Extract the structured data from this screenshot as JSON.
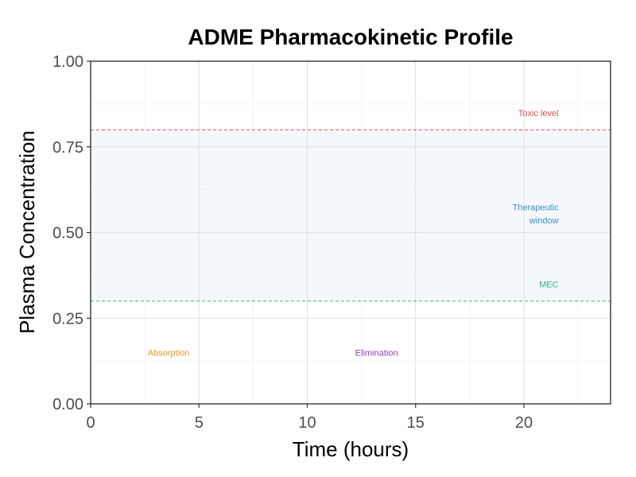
{
  "chart_data": {
    "type": "line",
    "title": "ADME Pharmacokinetic Profile",
    "xlabel": "Time (hours)",
    "ylabel": "Plasma Concentration",
    "xlim": [
      0,
      24
    ],
    "ylim": [
      0,
      1
    ],
    "x_ticks": [
      0,
      5,
      10,
      15,
      20
    ],
    "x_tick_labels": [
      "0",
      "5",
      "10",
      "15",
      "20"
    ],
    "y_ticks": [
      0,
      0.25,
      0.5,
      0.75,
      1.0
    ],
    "y_tick_labels": [
      "0.00",
      "0.25",
      "0.50",
      "0.75",
      "1.00"
    ],
    "grid": true,
    "series": [],
    "bands": [
      {
        "name": "therapeutic-window",
        "y_from": 0.3,
        "y_to": 0.8,
        "color": "#f4f8fd"
      }
    ],
    "reference_lines": [
      {
        "name": "toxic-level",
        "y": 0.8,
        "color": "#d9534f",
        "label": "Toxic level"
      },
      {
        "name": "mec",
        "y": 0.3,
        "color": "#2eb872",
        "label": "MEC"
      }
    ],
    "annotations": [
      {
        "name": "toxic-level-label",
        "text": "Toxic level",
        "x": 21.6,
        "y": 0.84,
        "anchor": "end",
        "color": "#d9534f"
      },
      {
        "name": "therapeutic-label-1",
        "text": "Therapeutic",
        "x": 21.6,
        "y": 0.565,
        "anchor": "end",
        "color": "#3a8fc9"
      },
      {
        "name": "therapeutic-label-2",
        "text": "window",
        "x": 21.6,
        "y": 0.527,
        "anchor": "end",
        "color": "#3a8fc9"
      },
      {
        "name": "mec-label",
        "text": "MEC",
        "x": 21.6,
        "y": 0.34,
        "anchor": "end",
        "color": "#2eb872"
      },
      {
        "name": "absorption-label",
        "text": "Absorption",
        "x": 3.6,
        "y": 0.14,
        "anchor": "middle",
        "color": "#e6961e"
      },
      {
        "name": "elimination-label",
        "text": "Elimination",
        "x": 13.2,
        "y": 0.14,
        "anchor": "middle",
        "color": "#8e44ad"
      }
    ]
  }
}
